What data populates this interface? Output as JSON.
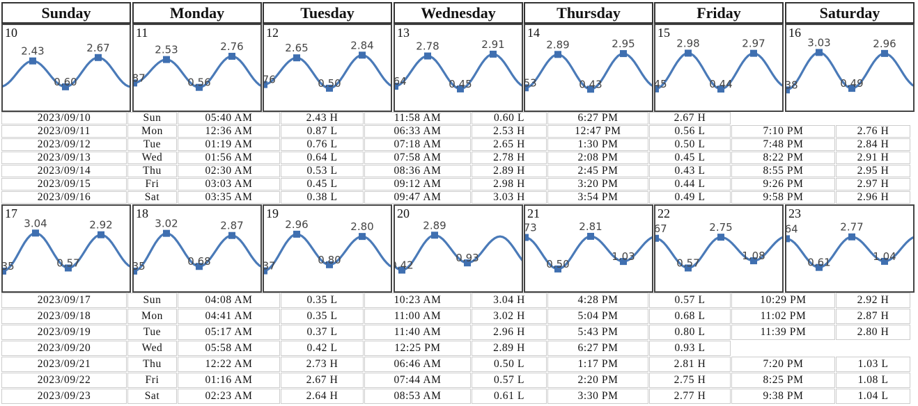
{
  "weekdays": [
    "Sunday",
    "Monday",
    "Tuesday",
    "Wednesday",
    "Thursday",
    "Friday",
    "Saturday"
  ],
  "week1": {
    "days": [
      {
        "day": "10",
        "extrema": [
          {
            "v": "2.43",
            "t": "H"
          },
          {
            "v": "0.60",
            "t": "L"
          },
          {
            "v": "2.67",
            "t": "H"
          }
        ]
      },
      {
        "day": "11",
        "extrema": [
          {
            "v": "0.87",
            "t": "L"
          },
          {
            "v": "2.53",
            "t": "H"
          },
          {
            "v": "0.56",
            "t": "L"
          },
          {
            "v": "2.76",
            "t": "H"
          }
        ]
      },
      {
        "day": "12",
        "extrema": [
          {
            "v": "0.76",
            "t": "L"
          },
          {
            "v": "2.65",
            "t": "H"
          },
          {
            "v": "0.50",
            "t": "L"
          },
          {
            "v": "2.84",
            "t": "H"
          }
        ]
      },
      {
        "day": "13",
        "extrema": [
          {
            "v": "0.64",
            "t": "L"
          },
          {
            "v": "2.78",
            "t": "H"
          },
          {
            "v": "0.45",
            "t": "L"
          },
          {
            "v": "2.91",
            "t": "H"
          }
        ]
      },
      {
        "day": "14",
        "extrema": [
          {
            "v": "0.53",
            "t": "L"
          },
          {
            "v": "2.89",
            "t": "H"
          },
          {
            "v": "0.43",
            "t": "L"
          },
          {
            "v": "2.95",
            "t": "H"
          }
        ]
      },
      {
        "day": "15",
        "extrema": [
          {
            "v": "0.45",
            "t": "L"
          },
          {
            "v": "2.98",
            "t": "H"
          },
          {
            "v": "0.44",
            "t": "L"
          },
          {
            "v": "2.97",
            "t": "H"
          }
        ]
      },
      {
        "day": "16",
        "extrema": [
          {
            "v": "0.38",
            "t": "L"
          },
          {
            "v": "3.03",
            "t": "H"
          },
          {
            "v": "0.49",
            "t": "L"
          },
          {
            "v": "2.96",
            "t": "H"
          }
        ]
      }
    ],
    "rows": [
      [
        "2023/09/10",
        "Sun",
        "05:40 AM",
        "2.43 H",
        "11:58 AM",
        "0.60 L",
        "6:27 PM",
        "2.67 H",
        "",
        ""
      ],
      [
        "2023/09/11",
        "Mon",
        "12:36 AM",
        "0.87 L",
        "06:33 AM",
        "2.53 H",
        "12:47 PM",
        "0.56 L",
        "7:10 PM",
        "2.76 H"
      ],
      [
        "2023/09/12",
        "Tue",
        "01:19 AM",
        "0.76 L",
        "07:18 AM",
        "2.65 H",
        "1:30 PM",
        "0.50 L",
        "7:48 PM",
        "2.84 H"
      ],
      [
        "2023/09/13",
        "Wed",
        "01:56 AM",
        "0.64 L",
        "07:58 AM",
        "2.78 H",
        "2:08 PM",
        "0.45 L",
        "8:22 PM",
        "2.91 H"
      ],
      [
        "2023/09/14",
        "Thu",
        "02:30 AM",
        "0.53 L",
        "08:36 AM",
        "2.89 H",
        "2:45 PM",
        "0.43 L",
        "8:55 PM",
        "2.95 H"
      ],
      [
        "2023/09/15",
        "Fri",
        "03:03 AM",
        "0.45 L",
        "09:12 AM",
        "2.98 H",
        "3:20 PM",
        "0.44 L",
        "9:26 PM",
        "2.97 H"
      ],
      [
        "2023/09/16",
        "Sat",
        "03:35 AM",
        "0.38 L",
        "09:47 AM",
        "3.03 H",
        "3:54 PM",
        "0.49 L",
        "9:58 PM",
        "2.96 H"
      ]
    ]
  },
  "week2": {
    "days": [
      {
        "day": "17",
        "extrema": [
          {
            "v": "0.35",
            "t": "L"
          },
          {
            "v": "3.04",
            "t": "H"
          },
          {
            "v": "0.57",
            "t": "L"
          },
          {
            "v": "2.92",
            "t": "H"
          }
        ]
      },
      {
        "day": "18",
        "extrema": [
          {
            "v": "0.35",
            "t": "L"
          },
          {
            "v": "3.02",
            "t": "H"
          },
          {
            "v": "0.68",
            "t": "L"
          },
          {
            "v": "2.87",
            "t": "H"
          }
        ]
      },
      {
        "day": "19",
        "extrema": [
          {
            "v": "0.37",
            "t": "L"
          },
          {
            "v": "2.96",
            "t": "H"
          },
          {
            "v": "0.80",
            "t": "L"
          },
          {
            "v": "2.80",
            "t": "H"
          }
        ]
      },
      {
        "day": "20",
        "extrema": [
          {
            "v": "0.42",
            "t": "L"
          },
          {
            "v": "2.89",
            "t": "H"
          },
          {
            "v": "0.93",
            "t": "L"
          }
        ]
      },
      {
        "day": "21",
        "extrema": [
          {
            "v": "2.73",
            "t": "H"
          },
          {
            "v": "0.50",
            "t": "L"
          },
          {
            "v": "2.81",
            "t": "H"
          },
          {
            "v": "1.03",
            "t": "L"
          }
        ]
      },
      {
        "day": "22",
        "extrema": [
          {
            "v": "2.67",
            "t": "H"
          },
          {
            "v": "0.57",
            "t": "L"
          },
          {
            "v": "2.75",
            "t": "H"
          },
          {
            "v": "1.08",
            "t": "L"
          }
        ]
      },
      {
        "day": "23",
        "extrema": [
          {
            "v": "2.64",
            "t": "H"
          },
          {
            "v": "0.61",
            "t": "L"
          },
          {
            "v": "2.77",
            "t": "H"
          },
          {
            "v": "1.04",
            "t": "L"
          }
        ]
      }
    ],
    "rows": [
      [
        "2023/09/17",
        "Sun",
        "04:08 AM",
        "0.35 L",
        "10:23 AM",
        "3.04 H",
        "4:28 PM",
        "0.57 L",
        "10:29 PM",
        "2.92 H"
      ],
      [
        "2023/09/18",
        "Mon",
        "04:41 AM",
        "0.35 L",
        "11:00 AM",
        "3.02 H",
        "5:04 PM",
        "0.68 L",
        "11:02 PM",
        "2.87 H"
      ],
      [
        "2023/09/19",
        "Tue",
        "05:17 AM",
        "0.37 L",
        "11:40 AM",
        "2.96 H",
        "5:43 PM",
        "0.80 L",
        "11:39 PM",
        "2.80 H"
      ],
      [
        "2023/09/20",
        "Wed",
        "05:58 AM",
        "0.42 L",
        "12:25 PM",
        "2.89 H",
        "6:27 PM",
        "0.93 L",
        "",
        ""
      ],
      [
        "2023/09/21",
        "Thu",
        "12:22 AM",
        "2.73 H",
        "06:46 AM",
        "0.50 L",
        "1:17 PM",
        "2.81 H",
        "7:20 PM",
        "1.03 L"
      ],
      [
        "2023/09/22",
        "Fri",
        "01:16 AM",
        "2.67 H",
        "07:44 AM",
        "0.57 L",
        "2:20 PM",
        "2.75 H",
        "8:25 PM",
        "1.08 L"
      ],
      [
        "2023/09/23",
        "Sat",
        "02:23 AM",
        "2.64 H",
        "08:53 AM",
        "0.61 L",
        "3:30 PM",
        "2.77 H",
        "9:38 PM",
        "1.04 L"
      ]
    ]
  },
  "colors": {
    "curve": "#4a7ab8",
    "marker": "#3f6fb0",
    "label": "#444444"
  }
}
